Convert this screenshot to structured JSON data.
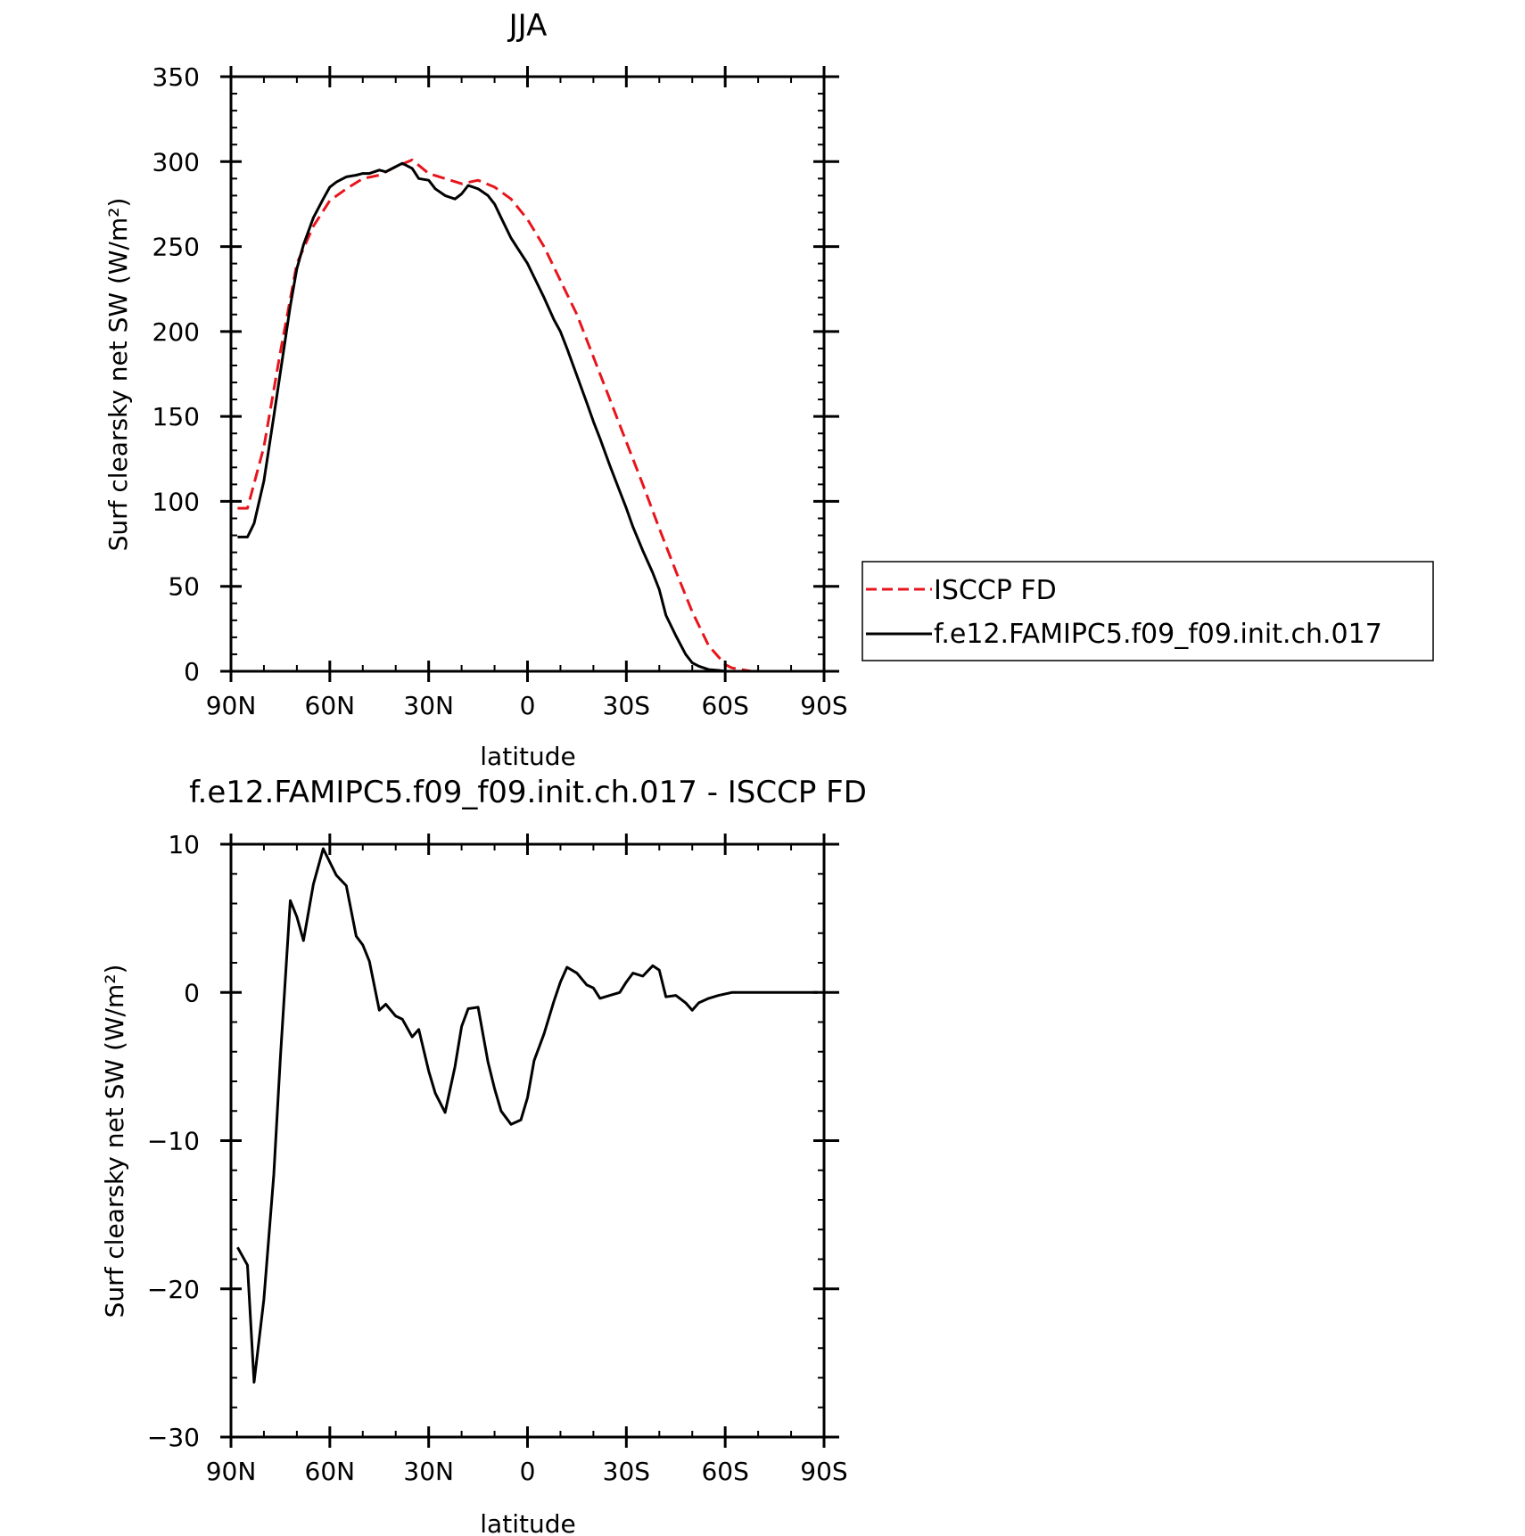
{
  "chart_data": [
    {
      "type": "line",
      "title": "JJA",
      "xlabel": "latitude",
      "ylabel": "Surf clearsky net SW (W/m²)",
      "x_range": [
        90,
        -90
      ],
      "x_tick_values": [
        90,
        60,
        30,
        0,
        -30,
        -60,
        -90
      ],
      "x_ticklabels": [
        "90N",
        "60N",
        "30N",
        "0",
        "30S",
        "60S",
        "90S"
      ],
      "ylim": [
        0,
        350
      ],
      "y_tick_values": [
        0,
        50,
        100,
        150,
        200,
        250,
        300,
        350
      ],
      "y_ticklabels": [
        "0",
        "50",
        "100",
        "150",
        "200",
        "250",
        "300",
        "350"
      ],
      "grid": false,
      "legend_position": "right",
      "legend": [
        "ISCCP FD",
        "f.e12.FAMIPC5.f09_f09.init.ch.017"
      ],
      "series": [
        {
          "name": "ISCCP FD",
          "color": "#e8141c",
          "dash": "dashed",
          "x": [
            88,
            85,
            80,
            75,
            70,
            65,
            60,
            55,
            50,
            45,
            40,
            35,
            30,
            25,
            20,
            15,
            10,
            5,
            0,
            -5,
            -10,
            -15,
            -20,
            -25,
            -30,
            -35,
            -40,
            -45,
            -50,
            -55,
            -60,
            -62,
            -65,
            -68,
            -70,
            -75,
            -80,
            -85,
            -88
          ],
          "y": [
            96,
            96,
            132,
            188,
            240,
            262,
            277,
            284,
            290,
            292,
            297,
            301,
            293,
            290,
            287,
            289,
            285,
            278,
            266,
            250,
            230,
            210,
            185,
            160,
            135,
            110,
            84,
            59,
            35,
            15,
            4,
            2,
            1,
            0,
            0,
            0,
            0,
            0,
            0
          ]
        },
        {
          "name": "f.e12.FAMIPC5.f09_f09.init.ch.017",
          "color": "#000000",
          "dash": "solid",
          "x": [
            88,
            85,
            83,
            80,
            77,
            75,
            72,
            70,
            68,
            65,
            62,
            60,
            58,
            55,
            52,
            50,
            48,
            45,
            43,
            40,
            38,
            35,
            33,
            30,
            28,
            25,
            22,
            20,
            18,
            15,
            12,
            10,
            8,
            5,
            2,
            0,
            -2,
            -5,
            -8,
            -10,
            -12,
            -15,
            -18,
            -20,
            -22,
            -25,
            -28,
            -30,
            -32,
            -35,
            -38,
            -40,
            -42,
            -45,
            -48,
            -50,
            -52,
            -55,
            -58,
            -60,
            -62,
            -65,
            -68,
            -70,
            -72,
            -75,
            -78,
            -80,
            -82,
            -85,
            -88
          ],
          "y": [
            79,
            79,
            87,
            112,
            150,
            176,
            215,
            237,
            251,
            267,
            278,
            285,
            288,
            291,
            292,
            293,
            293,
            295,
            294,
            297,
            299,
            296,
            290,
            289,
            284,
            280,
            278,
            281,
            286,
            284,
            280,
            275,
            267,
            255,
            246,
            240,
            232,
            220,
            207,
            200,
            190,
            174,
            158,
            147,
            137,
            121,
            106,
            96,
            85,
            71,
            58,
            48,
            33,
            21,
            10,
            5,
            3,
            1,
            0.5,
            0,
            0,
            0,
            0,
            0,
            0,
            0,
            0,
            0,
            0,
            0,
            0
          ]
        }
      ]
    },
    {
      "type": "line",
      "title": "f.e12.FAMIPC5.f09_f09.init.ch.017 - ISCCP FD",
      "xlabel": "latitude",
      "ylabel": "Surf clearsky net SW (W/m²)",
      "x_range": [
        90,
        -90
      ],
      "x_tick_values": [
        90,
        60,
        30,
        0,
        -30,
        -60,
        -90
      ],
      "x_ticklabels": [
        "90N",
        "60N",
        "30N",
        "0",
        "30S",
        "60S",
        "90S"
      ],
      "ylim": [
        -30,
        10
      ],
      "y_tick_values": [
        -30,
        -20,
        -10,
        0,
        10
      ],
      "y_ticklabels": [
        "−30",
        "−20",
        "−10",
        "0",
        "10"
      ],
      "grid": false,
      "series": [
        {
          "color": "#000000",
          "dash": "solid",
          "x": [
            88,
            85,
            83,
            80,
            77,
            75,
            72,
            70,
            68,
            65,
            62,
            60,
            58,
            55,
            52,
            50,
            48,
            45,
            43,
            40,
            38,
            35,
            33,
            30,
            28,
            25,
            22,
            20,
            18,
            15,
            12,
            10,
            8,
            5,
            2,
            0,
            -2,
            -5,
            -8,
            -10,
            -12,
            -15,
            -18,
            -20,
            -22,
            -25,
            -28,
            -30,
            -32,
            -35,
            -38,
            -40,
            -42,
            -45,
            -48,
            -50,
            -52,
            -55,
            -58,
            -60,
            -62,
            -65,
            -68,
            -70,
            -72,
            -75,
            -78,
            -80,
            -82,
            -85,
            -88
          ],
          "y": [
            -17.2,
            -18.4,
            -26.3,
            -20.7,
            -12.3,
            -4.4,
            6.2,
            5.1,
            3.5,
            7.3,
            9.7,
            8.8,
            7.9,
            7.2,
            3.8,
            3.2,
            2.1,
            -1.2,
            -0.8,
            -1.6,
            -1.8,
            -3.0,
            -2.5,
            -5.3,
            -6.8,
            -8.1,
            -5.0,
            -2.3,
            -1.1,
            -1.0,
            -4.7,
            -6.5,
            -8.0,
            -8.9,
            -8.6,
            -7.1,
            -4.6,
            -2.8,
            -0.6,
            0.7,
            1.7,
            1.3,
            0.5,
            0.3,
            -0.4,
            -0.2,
            0.0,
            0.7,
            1.3,
            1.1,
            1.8,
            1.5,
            -0.3,
            -0.2,
            -0.7,
            -1.2,
            -0.7,
            -0.4,
            -0.2,
            -0.1,
            0.0,
            0.0,
            0.0,
            0.0,
            0.0,
            0.0,
            0.0,
            0.0,
            0.0,
            0.0,
            0.0
          ]
        }
      ]
    }
  ]
}
